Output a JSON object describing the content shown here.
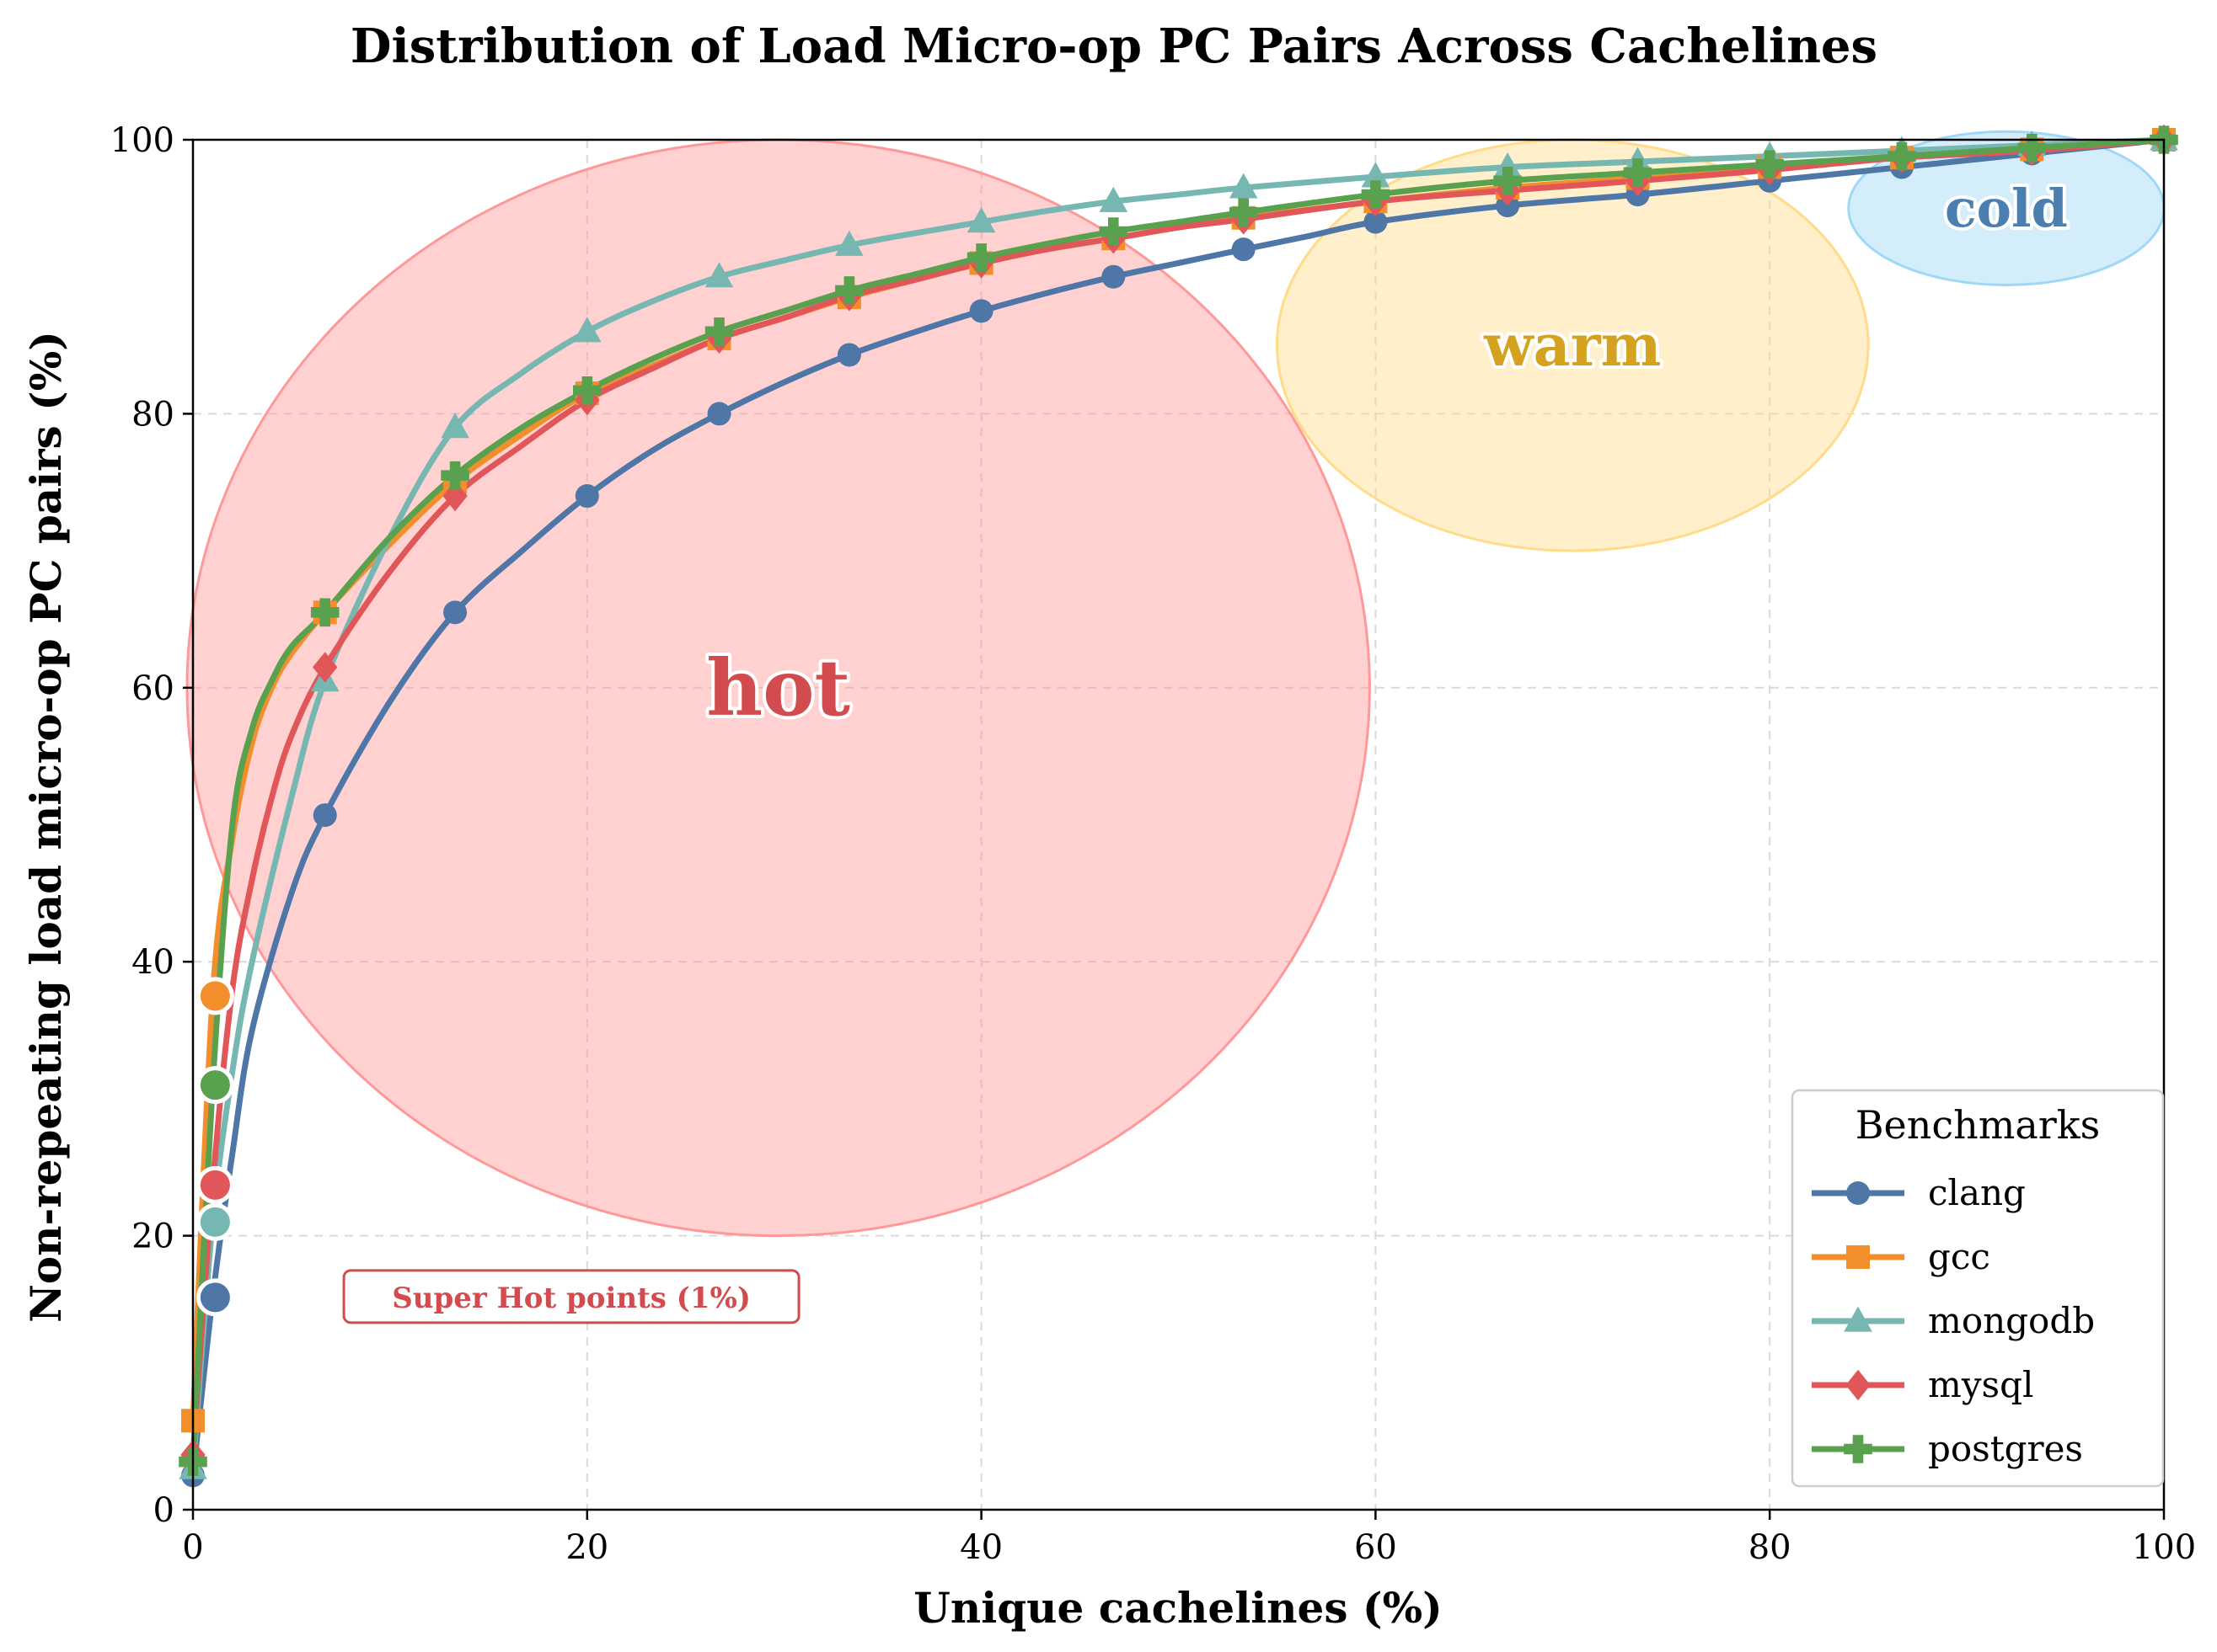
{
  "chart_data": {
    "type": "line",
    "title": "Distribution of Load Micro-op PC Pairs Across Cachelines",
    "xlabel": "Unique cachelines (%)",
    "ylabel": "Non-repeating load micro-op PC pairs (%)",
    "xlim": [
      0,
      100
    ],
    "ylim": [
      0,
      100
    ],
    "xticks": [
      0,
      20,
      40,
      60,
      80,
      100
    ],
    "yticks": [
      0,
      20,
      40,
      60,
      80,
      100
    ],
    "grid": true,
    "legend": {
      "title": "Benchmarks",
      "placement": "lower-right"
    },
    "series": [
      {
        "name": "clang",
        "color": "#4e76a6",
        "marker": "circle",
        "x": [
          0,
          1,
          2,
          3,
          5,
          6.7,
          10,
          13.3,
          16.7,
          20,
          23.3,
          26.7,
          30,
          33.3,
          36.7,
          40,
          43.3,
          46.7,
          50,
          53.3,
          56.7,
          60,
          66.7,
          73.3,
          80,
          86.7,
          93.3,
          100
        ],
        "y": [
          2.5,
          15.5,
          26,
          35,
          45,
          50.7,
          59,
          65.5,
          70,
          74,
          77.3,
          80,
          82.3,
          84.3,
          86,
          87.5,
          88.8,
          90,
          91,
          92,
          93,
          94,
          95.2,
          96,
          97,
          98,
          99,
          100
        ],
        "marked": [
          0,
          6.7,
          13.3,
          20,
          26.7,
          33.3,
          40,
          46.7,
          53.3,
          60,
          66.7,
          73.3,
          80,
          86.7,
          93.3,
          100
        ]
      },
      {
        "name": "gcc",
        "color": "#f28e2b",
        "marker": "square",
        "x": [
          0,
          1,
          2,
          3,
          4,
          5,
          6.7,
          10,
          13.3,
          16.7,
          20,
          23.3,
          26.7,
          30,
          33.3,
          36.7,
          40,
          43.3,
          46.7,
          50,
          53.3,
          60,
          66.7,
          73.3,
          80,
          86.7,
          93.3,
          100
        ],
        "y": [
          6.5,
          37.5,
          49,
          56,
          60,
          62.5,
          65.5,
          70.5,
          75,
          78.5,
          81.5,
          83.5,
          85.5,
          87,
          88.5,
          89.8,
          91,
          92,
          92.8,
          93.6,
          94.3,
          95.5,
          96.5,
          97.2,
          98,
          98.7,
          99.3,
          100
        ],
        "marked": [
          0,
          6.7,
          13.3,
          20,
          26.7,
          33.3,
          40,
          46.7,
          53.3,
          60,
          66.7,
          73.3,
          80,
          86.7,
          93.3,
          100
        ]
      },
      {
        "name": "mongodb",
        "color": "#76b7b2",
        "marker": "triangle",
        "x": [
          0,
          1,
          2,
          3,
          5,
          6.7,
          10,
          13.3,
          16.7,
          20,
          23.3,
          26.7,
          30,
          33.3,
          36.7,
          40,
          43.3,
          46.7,
          50,
          53.3,
          60,
          66.7,
          73.3,
          80,
          86.7,
          93.3,
          100
        ],
        "y": [
          3,
          21,
          32,
          40,
          52,
          60.5,
          71,
          79,
          83,
          86,
          88.2,
          90,
          91.2,
          92.3,
          93.2,
          94,
          94.8,
          95.5,
          96,
          96.5,
          97.3,
          98,
          98.4,
          98.8,
          99.2,
          99.6,
          100
        ],
        "marked": [
          0,
          6.7,
          13.3,
          20,
          26.7,
          33.3,
          40,
          46.7,
          53.3,
          60,
          66.7,
          73.3,
          80,
          86.7,
          93.3,
          100
        ]
      },
      {
        "name": "mysql",
        "color": "#e15759",
        "marker": "diamond",
        "x": [
          0,
          1,
          2,
          3,
          4,
          5,
          6.7,
          10,
          13.3,
          16.7,
          20,
          23.3,
          26.7,
          30,
          33.3,
          36.7,
          40,
          43.3,
          46.7,
          50,
          53.3,
          60,
          66.7,
          73.3,
          80,
          86.7,
          93.3,
          100
        ],
        "y": [
          4,
          23.7,
          38,
          46,
          52,
          56.5,
          61.5,
          68.5,
          74,
          77.7,
          81,
          83.3,
          85.5,
          87,
          88.6,
          89.8,
          91,
          92,
          92.8,
          93.6,
          94.2,
          95.5,
          96.3,
          97,
          97.8,
          98.7,
          99.2,
          100
        ],
        "marked": [
          0,
          6.7,
          13.3,
          20,
          26.7,
          33.3,
          40,
          46.7,
          53.3,
          60,
          66.7,
          73.3,
          80,
          86.7,
          93.3,
          100
        ]
      },
      {
        "name": "postgres",
        "color": "#59a14f",
        "marker": "plus",
        "x": [
          0,
          1,
          2,
          3,
          4,
          5,
          6.7,
          10,
          13.3,
          16.7,
          20,
          23.3,
          26.7,
          30,
          33.3,
          36.7,
          40,
          43.3,
          46.7,
          50,
          53.3,
          60,
          66.7,
          73.3,
          80,
          86.7,
          93.3,
          100
        ],
        "y": [
          3.5,
          31,
          50,
          57,
          60.5,
          63,
          65.5,
          71,
          75.5,
          79,
          81.7,
          84,
          86,
          87.5,
          89,
          90.2,
          91.4,
          92.4,
          93.3,
          94,
          94.7,
          96,
          97,
          97.6,
          98.2,
          98.8,
          99.4,
          100
        ],
        "marked": [
          0,
          6.7,
          13.3,
          20,
          26.7,
          33.3,
          40,
          46.7,
          53.3,
          60,
          66.7,
          73.3,
          80,
          86.7,
          93.3,
          100
        ]
      }
    ],
    "super_hot_points": {
      "x": 1,
      "values": {
        "clang": 15.5,
        "gcc": 37.5,
        "mongodb": 21,
        "mysql": 23.7,
        "postgres": 31
      }
    },
    "regions": [
      {
        "label": "hot",
        "color": "#ff9999",
        "text_color": "#d24b4e",
        "center": [
          29.7,
          60
        ],
        "radius": [
          30,
          40
        ]
      },
      {
        "label": "warm",
        "color": "#ffdb8a",
        "text_color": "#d4a21f",
        "center": [
          70,
          85
        ],
        "radius": [
          15,
          15
        ]
      },
      {
        "label": "cold",
        "color": "#9fd8f7",
        "text_color": "#4a7fb0",
        "center": [
          92,
          95
        ],
        "radius": [
          8,
          5.6
        ]
      }
    ],
    "annotation": {
      "text": "Super Hot points (1%)",
      "color": "#d24b4e",
      "x": 19.2,
      "y": 15.5
    }
  }
}
